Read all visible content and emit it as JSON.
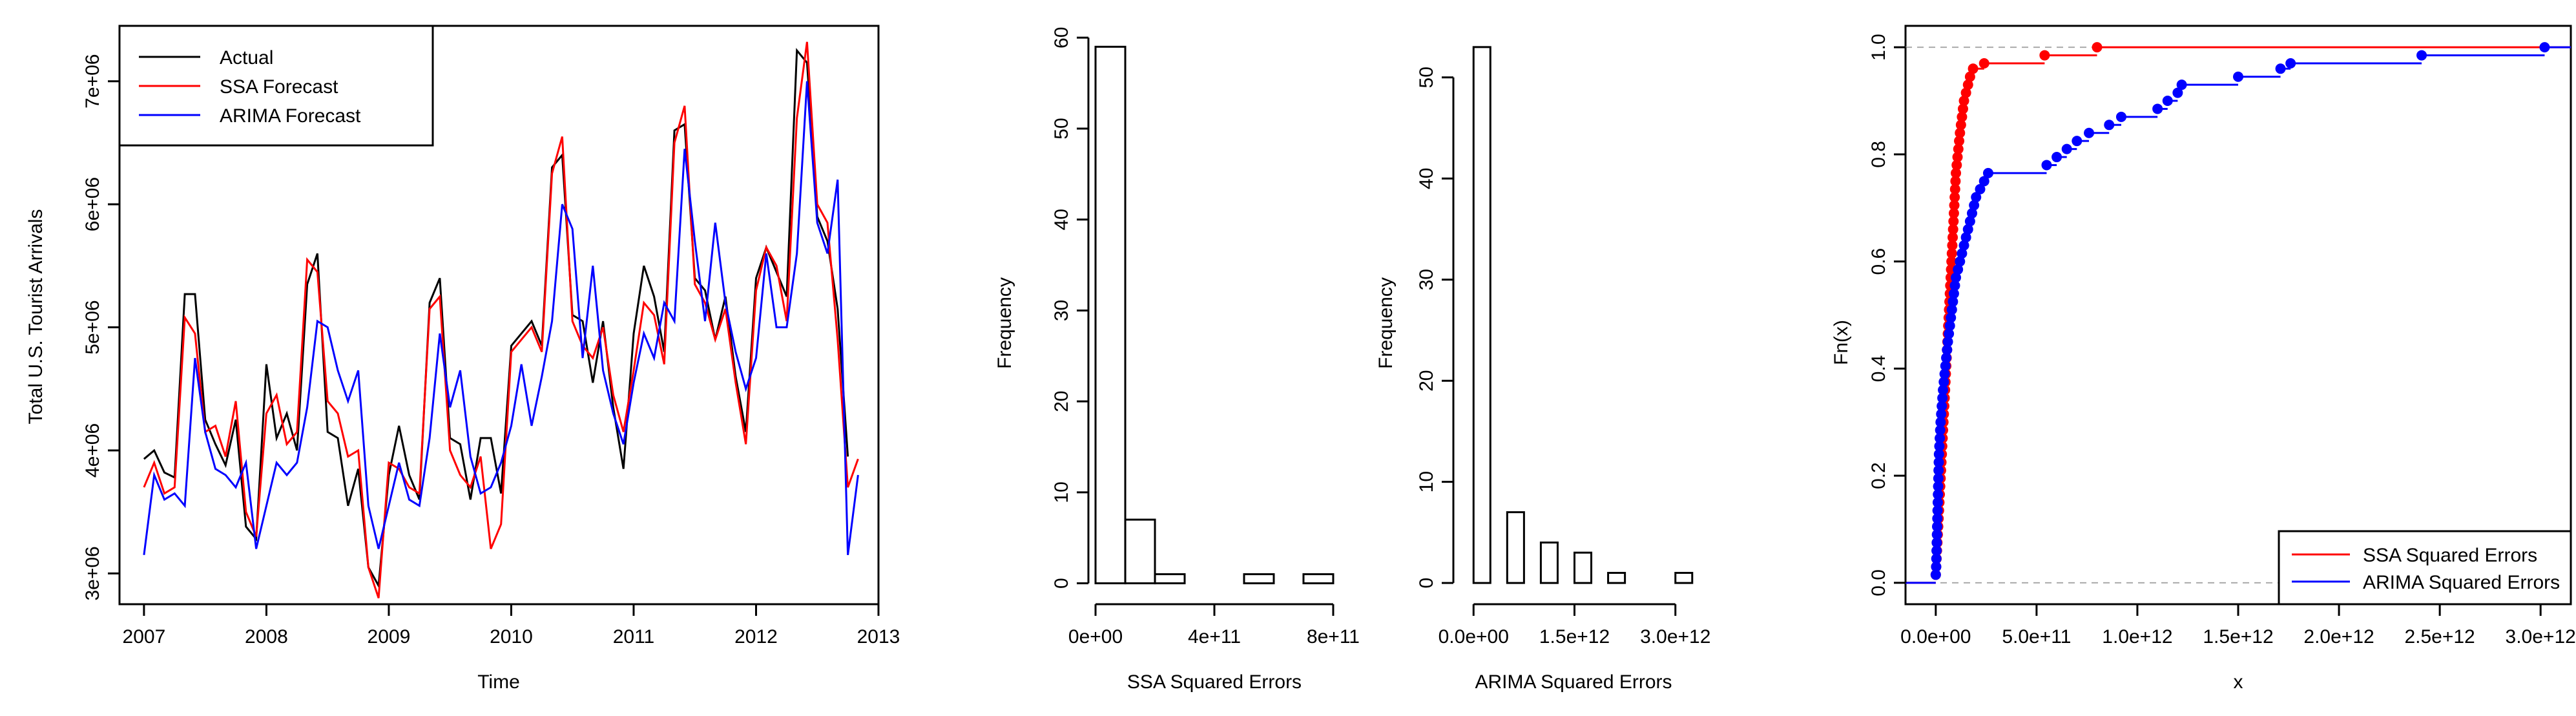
{
  "colors": {
    "actual": "#000000",
    "ssa": "#ff0000",
    "arima": "#0000ff",
    "frame": "#000000",
    "ref_line": "#a9a9a9"
  },
  "chart_data": [
    {
      "id": "timeseries",
      "type": "line",
      "title": "",
      "xlabel": "Time",
      "ylabel": "Total U.S. Tourist Arrivals",
      "xlim": [
        2006.8,
        2013.0
      ],
      "ylim": [
        2750000,
        7450000
      ],
      "xticks": [
        2007,
        2008,
        2009,
        2010,
        2011,
        2012,
        2013
      ],
      "xtick_labels": [
        "2007",
        "2008",
        "2009",
        "2010",
        "2011",
        "2012",
        "2013"
      ],
      "yticks": [
        3000000,
        4000000,
        5000000,
        6000000,
        7000000
      ],
      "ytick_labels": [
        "3e+06",
        "4e+06",
        "5e+06",
        "6e+06",
        "7e+06"
      ],
      "legend_position": "top-left",
      "frequency": 12,
      "start": [
        2007,
        1
      ],
      "series": [
        {
          "name": "Actual",
          "color": "#000000",
          "values": [
            3930000,
            4000000,
            3820000,
            3780000,
            5270000,
            5270000,
            4250000,
            4050000,
            3880000,
            4250000,
            3380000,
            3280000,
            4700000,
            4100000,
            4300000,
            4000000,
            5350000,
            5600000,
            4150000,
            4100000,
            3550000,
            3850000,
            3050000,
            2900000,
            3800000,
            4200000,
            3800000,
            3600000,
            5200000,
            5400000,
            4100000,
            4050000,
            3600000,
            4100000,
            4100000,
            3650000,
            4850000,
            4950000,
            5050000,
            4850000,
            6300000,
            6400000,
            5100000,
            5050000,
            4550000,
            5050000,
            4350000,
            3850000,
            4950000,
            5500000,
            5250000,
            4800000,
            6600000,
            6650000,
            5400000,
            5300000,
            4900000,
            5250000,
            4600000,
            4150000,
            5400000,
            5650000,
            5450000,
            5250000,
            7250000,
            7150000,
            5900000,
            5700000,
            5150000,
            3950000
          ]
        },
        {
          "name": "SSA Forecast",
          "color": "#ff0000",
          "values": [
            3700000,
            3900000,
            3650000,
            3700000,
            5080000,
            4950000,
            4150000,
            4200000,
            3950000,
            4400000,
            3500000,
            3300000,
            4300000,
            4450000,
            4050000,
            4150000,
            5550000,
            5450000,
            4400000,
            4300000,
            3950000,
            4000000,
            3050000,
            2800000,
            3900000,
            3850000,
            3700000,
            3650000,
            5150000,
            5250000,
            4000000,
            3800000,
            3700000,
            3950000,
            3200000,
            3400000,
            4800000,
            4900000,
            5000000,
            4800000,
            6250000,
            6550000,
            5050000,
            4850000,
            4750000,
            5000000,
            4450000,
            4150000,
            4650000,
            5200000,
            5100000,
            4700000,
            6500000,
            6800000,
            5350000,
            5200000,
            4900000,
            5150000,
            4550000,
            4050000,
            5300000,
            5650000,
            5500000,
            5050000,
            6700000,
            7320000,
            6000000,
            5850000,
            4900000,
            3700000,
            3930000
          ]
        },
        {
          "name": "ARIMA Forecast",
          "color": "#0000ff",
          "values": [
            3150000,
            3800000,
            3600000,
            3650000,
            3550000,
            4750000,
            4150000,
            3850000,
            3800000,
            3700000,
            3900000,
            3200000,
            3550000,
            3900000,
            3800000,
            3900000,
            4350000,
            5050000,
            5000000,
            4650000,
            4400000,
            4650000,
            3550000,
            3200000,
            3550000,
            3900000,
            3600000,
            3550000,
            4100000,
            4950000,
            4350000,
            4650000,
            3950000,
            3650000,
            3700000,
            3900000,
            4200000,
            4700000,
            4200000,
            4600000,
            5050000,
            6000000,
            5800000,
            4750000,
            5500000,
            4650000,
            4300000,
            4050000,
            4550000,
            4950000,
            4750000,
            5200000,
            5050000,
            6450000,
            5700000,
            5050000,
            5850000,
            5200000,
            4800000,
            4500000,
            4750000,
            5600000,
            5000000,
            5000000,
            5600000,
            7000000,
            5850000,
            5600000,
            6200000,
            3150000,
            3800000
          ]
        }
      ]
    },
    {
      "id": "ssa-hist",
      "type": "bar",
      "title": "",
      "xlabel": "SSA Squared Errors",
      "ylabel": "Frequency",
      "bin_edges": [
        0,
        100000000000,
        200000000000,
        300000000000,
        400000000000,
        500000000000,
        600000000000,
        700000000000,
        800000000000
      ],
      "values": [
        59,
        7,
        1,
        0,
        0,
        1,
        0,
        1
      ],
      "xlim": [
        -24000000000,
        824000000000
      ],
      "ylim": [
        -2.3,
        61.3
      ],
      "xticks": [
        0,
        400000000000,
        800000000000
      ],
      "xtick_labels": [
        "0e+00",
        "4e+11",
        "8e+11"
      ],
      "yticks": [
        0,
        10,
        20,
        30,
        40,
        50,
        60
      ],
      "ytick_labels": [
        "0",
        "10",
        "20",
        "30",
        "40",
        "50",
        "60"
      ]
    },
    {
      "id": "arima-hist",
      "type": "bar",
      "title": "",
      "xlabel": "ARIMA Squared Errors",
      "ylabel": "Frequency",
      "bin_edges": [
        0,
        250000000000,
        500000000000,
        750000000000,
        1000000000000,
        1250000000000,
        1500000000000,
        1750000000000,
        2000000000000,
        2250000000000,
        2500000000000,
        2750000000000,
        3000000000000,
        3250000000000
      ],
      "values": [
        53,
        0,
        7,
        0,
        4,
        0,
        3,
        0,
        1,
        0,
        0,
        0,
        1
      ],
      "xlim": [
        -300000000000,
        3300000000000
      ],
      "ylim": [
        -2.1,
        55.1
      ],
      "xticks": [
        0,
        1500000000000,
        3000000000000
      ],
      "xtick_labels": [
        "0.0e+00",
        "1.5e+12",
        "3.0e+12"
      ],
      "yticks": [
        0,
        10,
        20,
        30,
        40,
        50
      ],
      "ytick_labels": [
        "0",
        "10",
        "20",
        "30",
        "40",
        "50"
      ]
    },
    {
      "id": "ecdf",
      "type": "line",
      "subtype": "ecdf",
      "title": "",
      "xlabel": "x",
      "ylabel": "Fn(x)",
      "xlim": [
        -150000000000,
        3150000000000
      ],
      "ylim": [
        -0.04,
        1.04
      ],
      "xticks": [
        0,
        500000000000,
        1000000000000,
        1500000000000,
        2000000000000,
        2500000000000,
        3000000000000
      ],
      "xtick_labels": [
        "0.0e+00",
        "5.0e+11",
        "1.0e+12",
        "1.5e+12",
        "2.0e+12",
        "2.5e+12",
        "3.0e+12"
      ],
      "yticks": [
        0.0,
        0.2,
        0.4,
        0.6,
        0.8,
        1.0
      ],
      "ytick_labels": [
        "0.0",
        "0.2",
        "0.4",
        "0.6",
        "0.8",
        "1.0"
      ],
      "reference_lines": [
        0,
        1
      ],
      "legend_position": "bottom-right",
      "series": [
        {
          "name": "SSA Squared Errors",
          "color": "#ff0000",
          "points": [
            [
              0,
              0.015
            ],
            [
              2000000000.0,
              0.03
            ],
            [
              4000000000.0,
              0.045
            ],
            [
              6000000000.0,
              0.06
            ],
            [
              8000000000.0,
              0.075
            ],
            [
              10000000000.0,
              0.09
            ],
            [
              12000000000.0,
              0.105
            ],
            [
              14000000000.0,
              0.12
            ],
            [
              16000000000.0,
              0.135
            ],
            [
              18000000000.0,
              0.15
            ],
            [
              20000000000.0,
              0.165
            ],
            [
              22000000000.0,
              0.18
            ],
            [
              24000000000.0,
              0.195
            ],
            [
              26000000000.0,
              0.21
            ],
            [
              28000000000.0,
              0.225
            ],
            [
              30000000000.0,
              0.24
            ],
            [
              32000000000.0,
              0.255
            ],
            [
              34000000000.0,
              0.27
            ],
            [
              36000000000.0,
              0.285
            ],
            [
              38000000000.0,
              0.3
            ],
            [
              40000000000.0,
              0.315
            ],
            [
              42000000000.0,
              0.33
            ],
            [
              44000000000.0,
              0.345
            ],
            [
              46000000000.0,
              0.36
            ],
            [
              48000000000.0,
              0.375
            ],
            [
              50000000000.0,
              0.39
            ],
            [
              52000000000.0,
              0.405
            ],
            [
              54000000000.0,
              0.42
            ],
            [
              56000000000.0,
              0.435
            ],
            [
              58000000000.0,
              0.45
            ],
            [
              60000000000.0,
              0.465
            ],
            [
              62000000000.0,
              0.48
            ],
            [
              64000000000.0,
              0.495
            ],
            [
              66000000000.0,
              0.51
            ],
            [
              68000000000.0,
              0.525
            ],
            [
              70000000000.0,
              0.54
            ],
            [
              72000000000.0,
              0.555
            ],
            [
              74000000000.0,
              0.57
            ],
            [
              76000000000.0,
              0.585
            ],
            [
              78000000000.0,
              0.6
            ],
            [
              80000000000.0,
              0.615
            ],
            [
              82000000000.0,
              0.63
            ],
            [
              84000000000.0,
              0.645
            ],
            [
              86000000000.0,
              0.66
            ],
            [
              88000000000.0,
              0.675
            ],
            [
              90000000000.0,
              0.69
            ],
            [
              92000000000.0,
              0.705
            ],
            [
              94000000000.0,
              0.72
            ],
            [
              96000000000.0,
              0.735
            ],
            [
              98000000000.0,
              0.75
            ],
            [
              100000000000.0,
              0.765
            ],
            [
              104000000000.0,
              0.78
            ],
            [
              108000000000.0,
              0.795
            ],
            [
              112000000000.0,
              0.81
            ],
            [
              116000000000.0,
              0.825
            ],
            [
              120000000000.0,
              0.84
            ],
            [
              125000000000.0,
              0.855
            ],
            [
              130000000000.0,
              0.87
            ],
            [
              135000000000.0,
              0.885
            ],
            [
              140000000000.0,
              0.9
            ],
            [
              150000000000.0,
              0.915
            ],
            [
              160000000000.0,
              0.93
            ],
            [
              170000000000.0,
              0.945
            ],
            [
              185000000000.0,
              0.96
            ],
            [
              240000000000.0,
              0.97
            ],
            [
              540000000000.0,
              0.985
            ],
            [
              800000000000.0,
              1.0
            ]
          ]
        },
        {
          "name": "ARIMA Squared Errors",
          "color": "#0000ff",
          "points": [
            [
              0,
              0.015
            ],
            [
              2000000000.0,
              0.03
            ],
            [
              3000000000.0,
              0.045
            ],
            [
              4000000000.0,
              0.06
            ],
            [
              5000000000.0,
              0.075
            ],
            [
              6000000000.0,
              0.09
            ],
            [
              7000000000.0,
              0.105
            ],
            [
              8000000000.0,
              0.12
            ],
            [
              9000000000.0,
              0.135
            ],
            [
              10000000000.0,
              0.15
            ],
            [
              11000000000.0,
              0.165
            ],
            [
              12000000000.0,
              0.18
            ],
            [
              13000000000.0,
              0.195
            ],
            [
              14000000000.0,
              0.21
            ],
            [
              15000000000.0,
              0.225
            ],
            [
              16000000000.0,
              0.24
            ],
            [
              18000000000.0,
              0.255
            ],
            [
              20000000000.0,
              0.27
            ],
            [
              22000000000.0,
              0.285
            ],
            [
              24000000000.0,
              0.3
            ],
            [
              27000000000.0,
              0.315
            ],
            [
              30000000000.0,
              0.33
            ],
            [
              33000000000.0,
              0.345
            ],
            [
              36000000000.0,
              0.36
            ],
            [
              40000000000.0,
              0.375
            ],
            [
              44000000000.0,
              0.39
            ],
            [
              48000000000.0,
              0.405
            ],
            [
              52000000000.0,
              0.42
            ],
            [
              56000000000.0,
              0.435
            ],
            [
              60000000000.0,
              0.45
            ],
            [
              65000000000.0,
              0.465
            ],
            [
              70000000000.0,
              0.48
            ],
            [
              75000000000.0,
              0.495
            ],
            [
              80000000000.0,
              0.51
            ],
            [
              85000000000.0,
              0.525
            ],
            [
              90000000000.0,
              0.54
            ],
            [
              95000000000.0,
              0.555
            ],
            [
              100000000000.0,
              0.57
            ],
            [
              110000000000.0,
              0.585
            ],
            [
              120000000000.0,
              0.6
            ],
            [
              130000000000.0,
              0.615
            ],
            [
              140000000000.0,
              0.63
            ],
            [
              150000000000.0,
              0.645
            ],
            [
              160000000000.0,
              0.66
            ],
            [
              170000000000.0,
              0.675
            ],
            [
              180000000000.0,
              0.69
            ],
            [
              190000000000.0,
              0.705
            ],
            [
              200000000000.0,
              0.72
            ],
            [
              220000000000.0,
              0.735
            ],
            [
              240000000000.0,
              0.75
            ],
            [
              260000000000.0,
              0.765
            ],
            [
              550000000000.0,
              0.78
            ],
            [
              600000000000.0,
              0.795
            ],
            [
              650000000000.0,
              0.81
            ],
            [
              700000000000.0,
              0.825
            ],
            [
              760000000000.0,
              0.84
            ],
            [
              860000000000.0,
              0.855
            ],
            [
              920000000000.0,
              0.87
            ],
            [
              1100000000000.0,
              0.885
            ],
            [
              1150000000000.0,
              0.9
            ],
            [
              1200000000000.0,
              0.915
            ],
            [
              1220000000000.0,
              0.93
            ],
            [
              1500000000000.0,
              0.945
            ],
            [
              1710000000000.0,
              0.96
            ],
            [
              1760000000000.0,
              0.97
            ],
            [
              2410000000000.0,
              0.985
            ],
            [
              3020000000000.0,
              1.0
            ]
          ]
        }
      ]
    }
  ]
}
